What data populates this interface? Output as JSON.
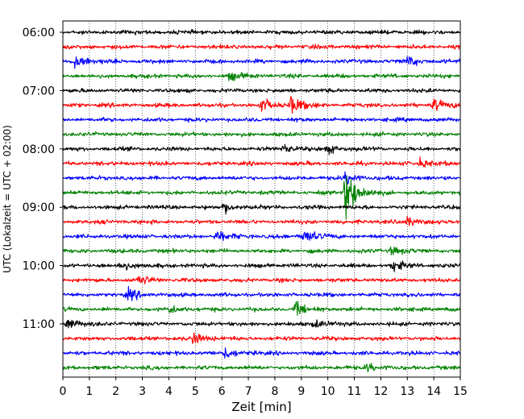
{
  "chart_data": {
    "type": "line",
    "title": "",
    "xlabel": "Zeit  [min]",
    "ylabel": "UTC (Lokalzeit = UTC + 02:00)",
    "xlim": [
      0,
      15
    ],
    "x_ticks": [
      "0",
      "1",
      "2",
      "3",
      "4",
      "5",
      "6",
      "7",
      "8",
      "9",
      "10",
      "11",
      "12",
      "13",
      "14",
      "15"
    ],
    "y_ticks": [
      "06:00",
      "07:00",
      "08:00",
      "09:00",
      "10:00",
      "11:00"
    ],
    "grid": "vertical-dotted",
    "trace_interval_min": 15,
    "start_time": "06:00",
    "trace_colors": [
      "#000000",
      "#ff0000",
      "#0000ff",
      "#008000"
    ],
    "traces": [
      {
        "time": "06:00",
        "color": "#000000",
        "events": []
      },
      {
        "time": "06:15",
        "color": "#ff0000",
        "events": []
      },
      {
        "time": "06:30",
        "color": "#0000ff",
        "events": [
          {
            "t": 0.5,
            "amp": 8
          },
          {
            "t": 13.0,
            "amp": 5
          }
        ]
      },
      {
        "time": "06:45",
        "color": "#008000",
        "events": [
          {
            "t": 6.3,
            "amp": 4
          }
        ]
      },
      {
        "time": "07:00",
        "color": "#000000",
        "events": []
      },
      {
        "time": "07:15",
        "color": "#ff0000",
        "events": [
          {
            "t": 7.5,
            "amp": 6
          },
          {
            "t": 8.6,
            "amp": 9
          },
          {
            "t": 14.0,
            "amp": 6
          }
        ]
      },
      {
        "time": "07:30",
        "color": "#0000ff",
        "events": []
      },
      {
        "time": "07:45",
        "color": "#008000",
        "events": []
      },
      {
        "time": "08:00",
        "color": "#000000",
        "events": [
          {
            "t": 8.3,
            "amp": 4
          },
          {
            "t": 10.0,
            "amp": 4
          }
        ]
      },
      {
        "time": "08:15",
        "color": "#ff0000",
        "events": [
          {
            "t": 13.5,
            "amp": 4
          }
        ]
      },
      {
        "time": "08:30",
        "color": "#0000ff",
        "events": [
          {
            "t": 10.7,
            "amp": 6
          }
        ]
      },
      {
        "time": "08:45",
        "color": "#008000",
        "events": [
          {
            "t": 10.7,
            "amp": 28
          }
        ]
      },
      {
        "time": "09:00",
        "color": "#000000",
        "events": [
          {
            "t": 6.1,
            "amp": 5
          }
        ]
      },
      {
        "time": "09:15",
        "color": "#ff0000",
        "events": [
          {
            "t": 13.0,
            "amp": 4
          }
        ]
      },
      {
        "time": "09:30",
        "color": "#0000ff",
        "events": [
          {
            "t": 5.8,
            "amp": 5
          },
          {
            "t": 9.1,
            "amp": 8
          }
        ]
      },
      {
        "time": "09:45",
        "color": "#008000",
        "events": [
          {
            "t": 12.4,
            "amp": 4
          }
        ]
      },
      {
        "time": "10:00",
        "color": "#000000",
        "events": [
          {
            "t": 2.2,
            "amp": 5
          },
          {
            "t": 12.5,
            "amp": 5
          }
        ]
      },
      {
        "time": "10:15",
        "color": "#ff0000",
        "events": [
          {
            "t": 2.9,
            "amp": 5
          }
        ]
      },
      {
        "time": "10:30",
        "color": "#0000ff",
        "events": [
          {
            "t": 2.5,
            "amp": 5
          }
        ]
      },
      {
        "time": "10:45",
        "color": "#008000",
        "events": [
          {
            "t": 4.0,
            "amp": 4
          },
          {
            "t": 8.8,
            "amp": 6
          }
        ]
      },
      {
        "time": "11:00",
        "color": "#000000",
        "events": [
          {
            "t": 0.2,
            "amp": 6
          },
          {
            "t": 9.5,
            "amp": 4
          }
        ]
      },
      {
        "time": "11:15",
        "color": "#ff0000",
        "events": [
          {
            "t": 4.9,
            "amp": 6
          }
        ]
      },
      {
        "time": "11:30",
        "color": "#0000ff",
        "events": [
          {
            "t": 6.1,
            "amp": 6
          }
        ]
      },
      {
        "time": "11:45",
        "color": "#008000",
        "events": [
          {
            "t": 11.5,
            "amp": 4
          }
        ]
      }
    ]
  }
}
